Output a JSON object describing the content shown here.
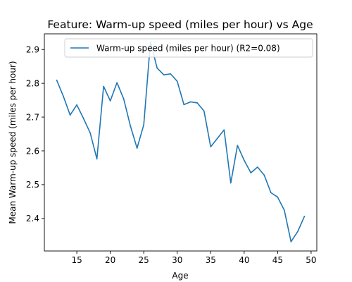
{
  "chart_data": {
    "type": "line",
    "title": "Feature: Warm-up speed (miles per hour) vs Age",
    "xlabel": "Age",
    "ylabel": "Mean Warm-up speed (miles per hour)",
    "xlim": [
      10.15,
      50.85
    ],
    "ylim": [
      2.3035,
      2.9465
    ],
    "xticks": [
      15,
      20,
      25,
      30,
      35,
      40,
      45,
      50
    ],
    "yticks": [
      2.4,
      2.5,
      2.6,
      2.7,
      2.8,
      2.9
    ],
    "xtick_labels": [
      "15",
      "20",
      "25",
      "30",
      "35",
      "40",
      "45",
      "50"
    ],
    "ytick_labels": [
      "2.4",
      "2.5",
      "2.6",
      "2.7",
      "2.8",
      "2.9"
    ],
    "legend_position": "top-right",
    "grid": false,
    "series": [
      {
        "name": "Warm-up speed (miles per hour) (R2=0.08)",
        "color": "#1f77b4",
        "x": [
          12,
          13,
          14,
          15,
          16,
          17,
          18,
          19,
          20,
          21,
          22,
          23,
          24,
          25,
          26,
          27,
          28,
          29,
          30,
          31,
          32,
          33,
          34,
          35,
          36,
          37,
          38,
          39,
          40,
          41,
          42,
          43,
          44,
          45,
          46,
          47,
          48,
          49
        ],
        "y": [
          2.809,
          2.761,
          2.706,
          2.736,
          2.696,
          2.653,
          2.576,
          2.791,
          2.748,
          2.802,
          2.754,
          2.674,
          2.608,
          2.677,
          2.923,
          2.845,
          2.825,
          2.828,
          2.806,
          2.737,
          2.745,
          2.742,
          2.718,
          2.612,
          2.637,
          2.662,
          2.505,
          2.616,
          2.572,
          2.535,
          2.552,
          2.528,
          2.476,
          2.463,
          2.424,
          2.331,
          2.361,
          2.406
        ]
      }
    ]
  }
}
